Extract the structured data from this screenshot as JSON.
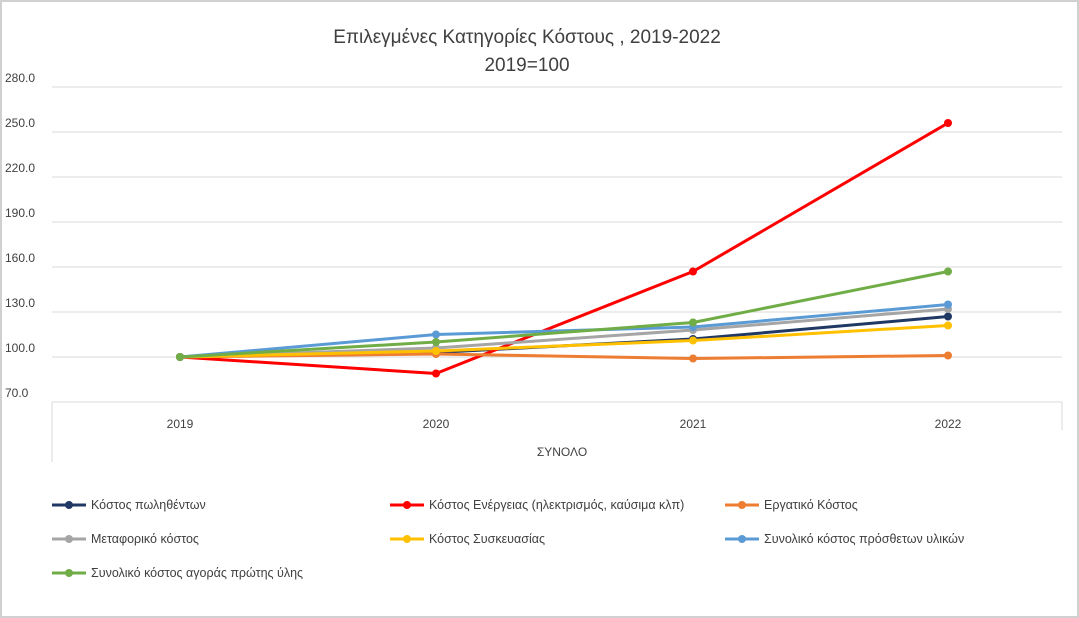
{
  "chart_data": {
    "type": "line",
    "title": "Επιλεγμένες Κατηγορίες Κόστους , 2019-2022",
    "subtitle": "2019=100",
    "xlabel": "ΣΥΝΟΛΟ",
    "ylabel": "",
    "x": [
      "2019",
      "2020",
      "2021",
      "2022"
    ],
    "ylim": [
      70,
      280
    ],
    "yticks": [
      "70.0",
      "100.0",
      "130.0",
      "160.0",
      "190.0",
      "220.0",
      "250.0",
      "280.0"
    ],
    "grid": true,
    "legend_position": "bottom",
    "series": [
      {
        "name": "Κόστος πωληθέντων",
        "color": "#203864",
        "values": [
          100,
          103,
          112,
          127
        ]
      },
      {
        "name": "Κόστος Ενέργειας (ηλεκτρισμός, καύσιμα κλπ)",
        "color": "#ff0000",
        "values": [
          100,
          89,
          157,
          256
        ]
      },
      {
        "name": "Εργατικό Κόστος",
        "color": "#ed7d31",
        "values": [
          100,
          102,
          99,
          101
        ]
      },
      {
        "name": "Μεταφορικό κόστος",
        "color": "#a5a5a5",
        "values": [
          100,
          106,
          118,
          132
        ]
      },
      {
        "name": "Κόστος Συσκευασίας",
        "color": "#ffc000",
        "values": [
          100,
          104,
          111,
          121
        ]
      },
      {
        "name": "Συνολικό κόστος πρόσθετων υλικών",
        "color": "#5b9bd5",
        "values": [
          100,
          115,
          120,
          135
        ]
      },
      {
        "name": "Συνολικό κόστος αγοράς πρώτης ύλης",
        "color": "#70ad47",
        "values": [
          100,
          110,
          123,
          157
        ]
      }
    ]
  }
}
